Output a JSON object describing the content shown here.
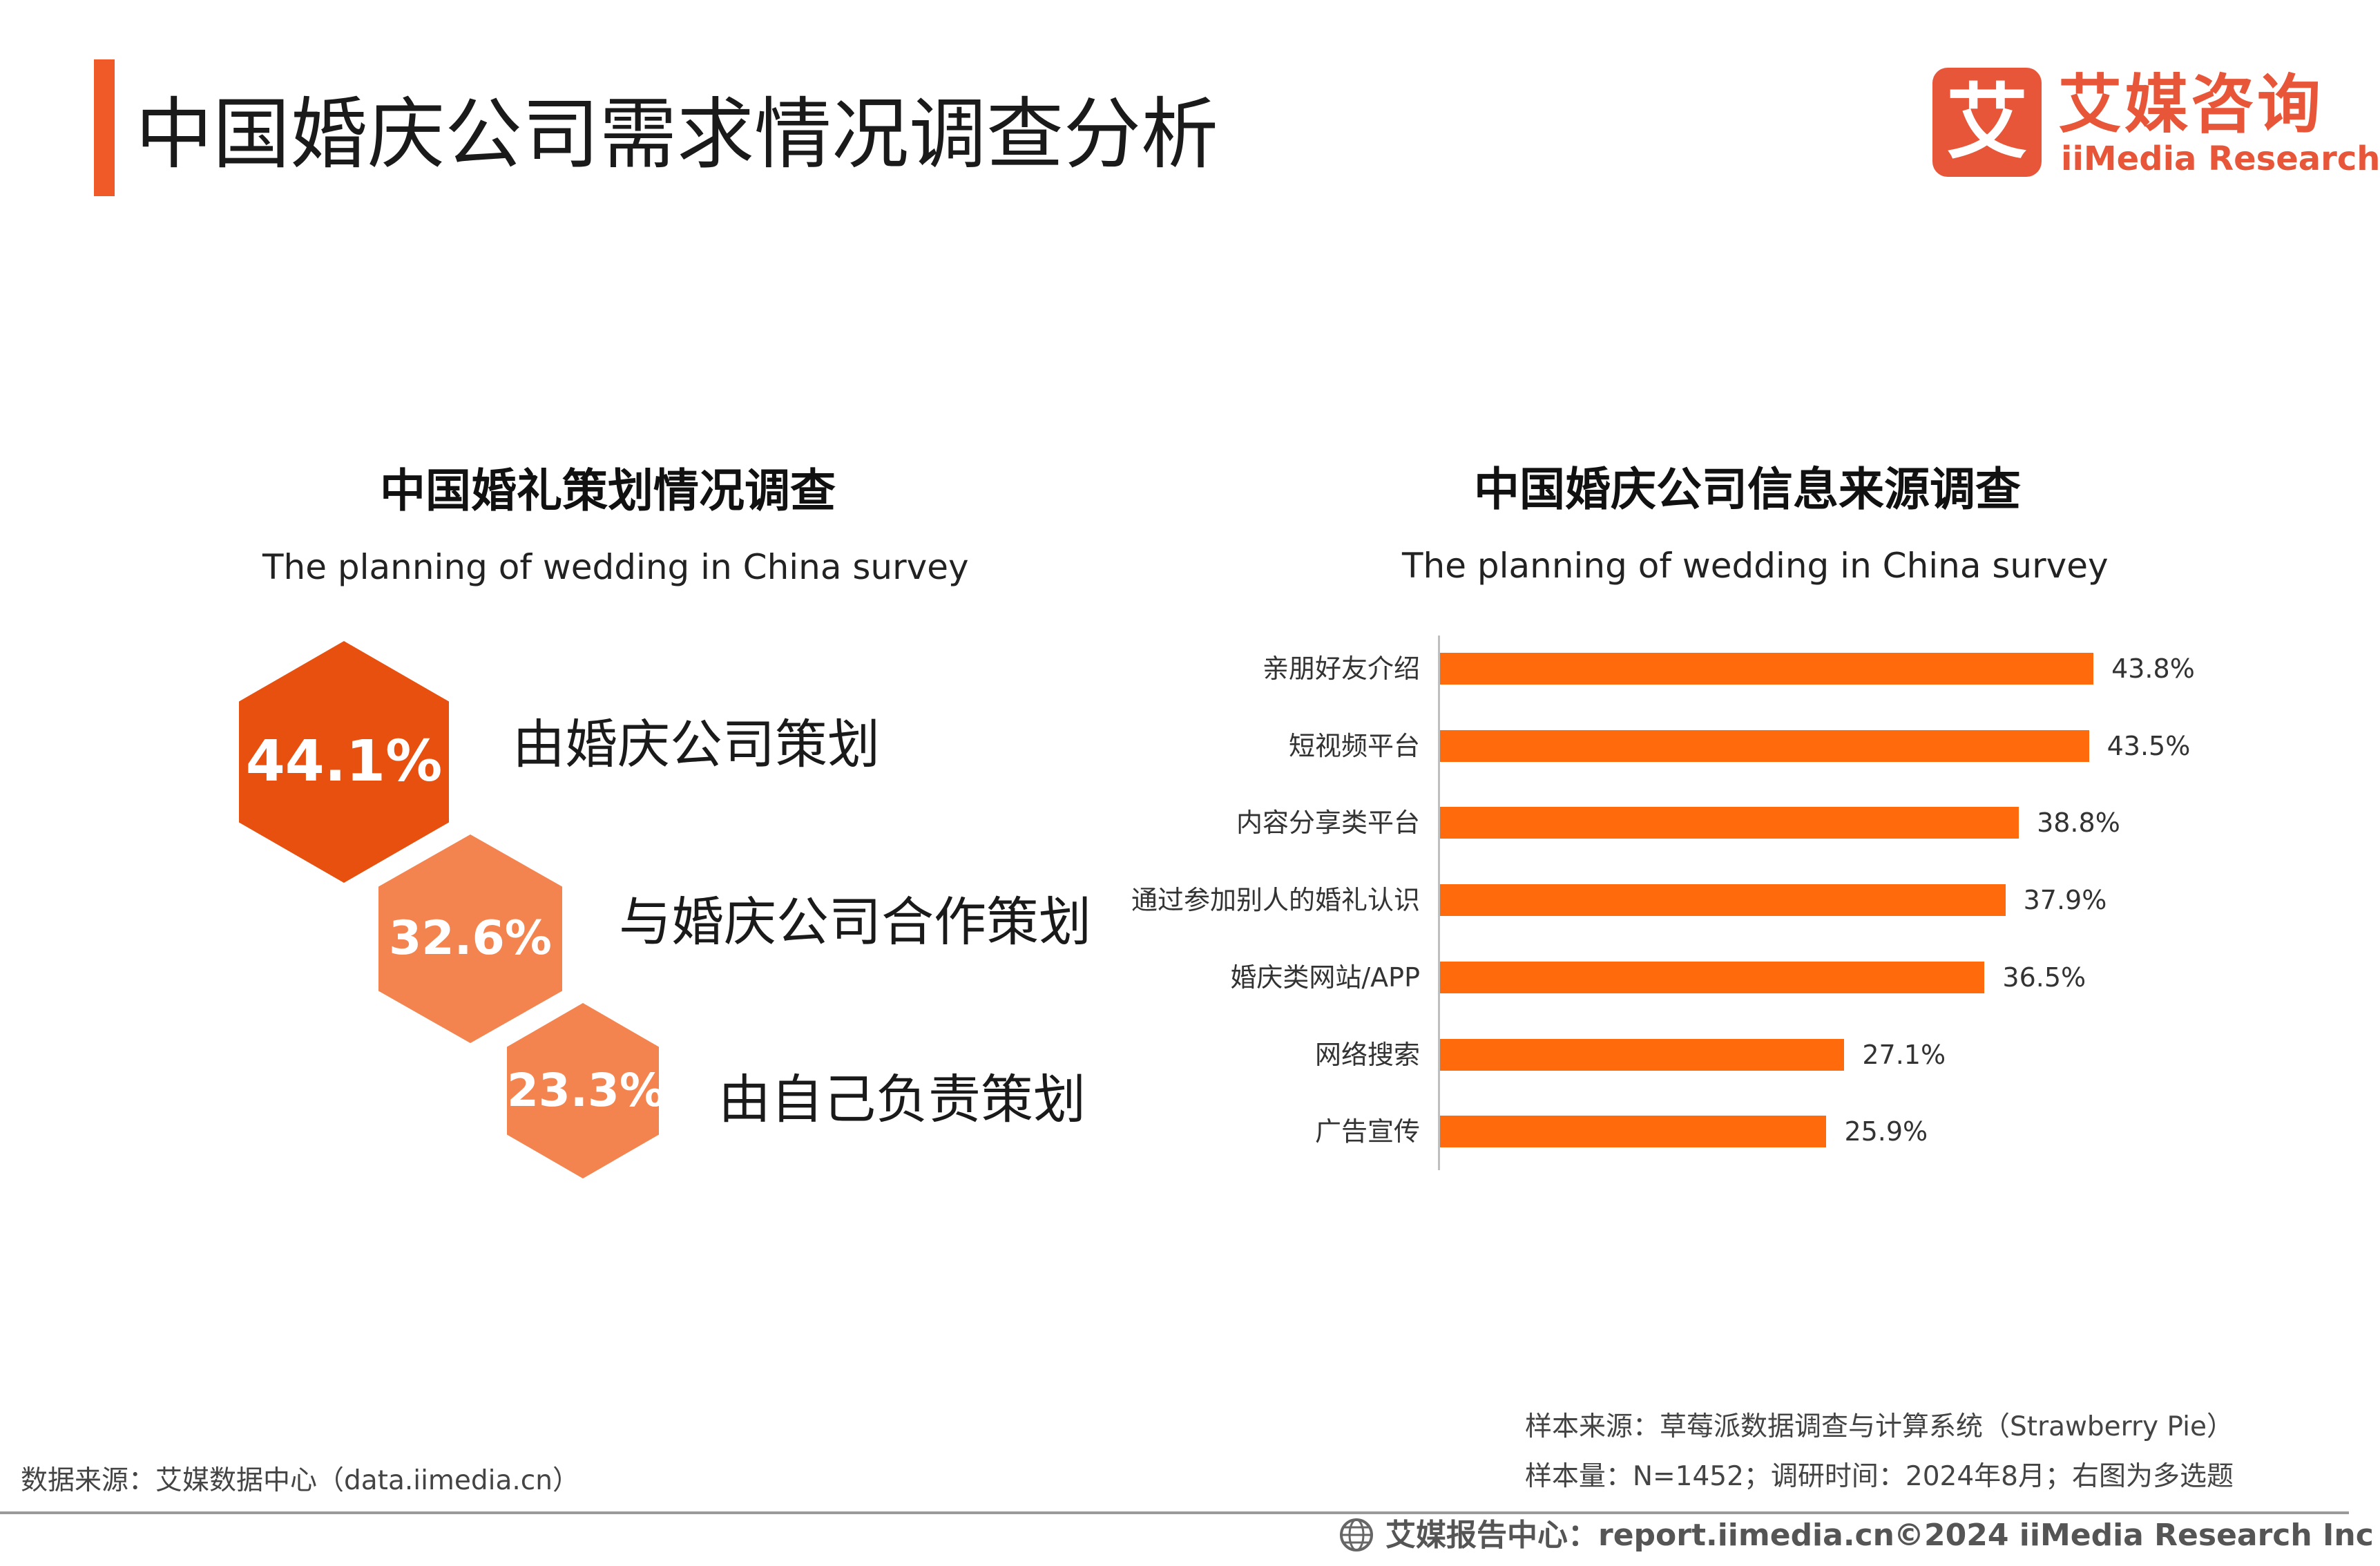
{
  "header": {
    "title": "中国婚庆公司需求情况调查分析",
    "logo_glyph": "艾",
    "logo_cn": "艾媒咨询",
    "logo_en": "iiMedia Research"
  },
  "left_section": {
    "title": "中国婚礼策划情况调查",
    "subtitle": "The planning of wedding in China survey",
    "items": [
      {
        "value": "44.1%",
        "label": "由婚庆公司策划",
        "color": "#e8500f"
      },
      {
        "value": "32.6%",
        "label": "与婚庆公司合作策划",
        "color": "#f4844f"
      },
      {
        "value": "23.3%",
        "label": "由自己负责策划",
        "color": "#f4844f"
      }
    ]
  },
  "right_section": {
    "title": "中国婚庆公司信息来源调查",
    "subtitle": "The planning of wedding in China survey"
  },
  "chart_data": [
    {
      "type": "pie",
      "title": "中国婚礼策划情况调查",
      "subtitle": "The planning of wedding in China survey",
      "categories": [
        "由婚庆公司策划",
        "与婚庆公司合作策划",
        "由自己负责策划"
      ],
      "values": [
        44.1,
        32.6,
        23.3
      ],
      "unit": "%"
    },
    {
      "type": "bar",
      "orientation": "horizontal",
      "title": "中国婚庆公司信息来源调查",
      "subtitle": "The planning of wedding in China survey",
      "categories": [
        "亲朋好友介绍",
        "短视频平台",
        "内容分享类平台",
        "通过参加别人的婚礼认识",
        "婚庆类网站/APP",
        "网络搜索",
        "广告宣传"
      ],
      "values": [
        43.8,
        43.5,
        38.8,
        37.9,
        36.5,
        27.1,
        25.9
      ],
      "value_labels": [
        "43.8%",
        "43.5%",
        "38.8%",
        "37.9%",
        "36.5%",
        "27.1%",
        "25.9%"
      ],
      "unit": "%",
      "bar_color": "#ff6a0d",
      "grid": false,
      "legend": "none"
    }
  ],
  "footer": {
    "source_left": "数据来源：艾媒数据中心（data.iimedia.cn）",
    "sample_source": "样本来源：草莓派数据调查与计算系统（Strawberry Pie）",
    "sample_size": "样本量：N=1452；调研时间：2024年8月；右图为多选题",
    "report_center": "艾媒报告中心：report.iimedia.cn",
    "copyright": "©2024  iiMedia Research Inc"
  }
}
